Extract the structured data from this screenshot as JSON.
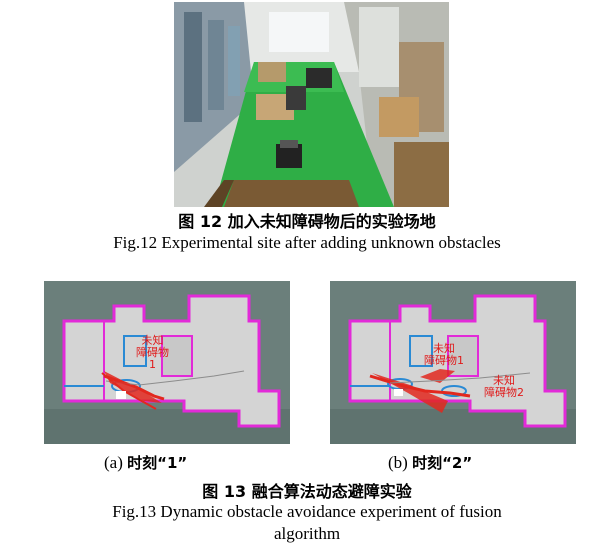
{
  "fig12": {
    "caption_cn": "图 12  加入未知障碍物后的实验场地",
    "caption_en": "Fig.12 Experimental site after adding unknown obstacles"
  },
  "fig13": {
    "panel_a": {
      "label": "(a)",
      "label_cn": "时刻“1”",
      "obstacle_1": "未知\n障碍物\n1"
    },
    "panel_b": {
      "label": "(b)",
      "label_cn": "时刻“2”",
      "obstacle_1": "未知\n障碍物1",
      "obstacle_2": "未知\n障碍物2"
    },
    "caption_cn": "图 13  融合算法动态避障实验",
    "caption_en_line1": "Fig.13 Dynamic obstacle avoidance experiment of fusion",
    "caption_en_line2": "algorithm"
  },
  "colors": {
    "floor": "#2fae46",
    "map_bg": "#6b7f7b",
    "free": "#d4d4d4",
    "wall": "#e22ad8",
    "path": "#e2281e"
  }
}
